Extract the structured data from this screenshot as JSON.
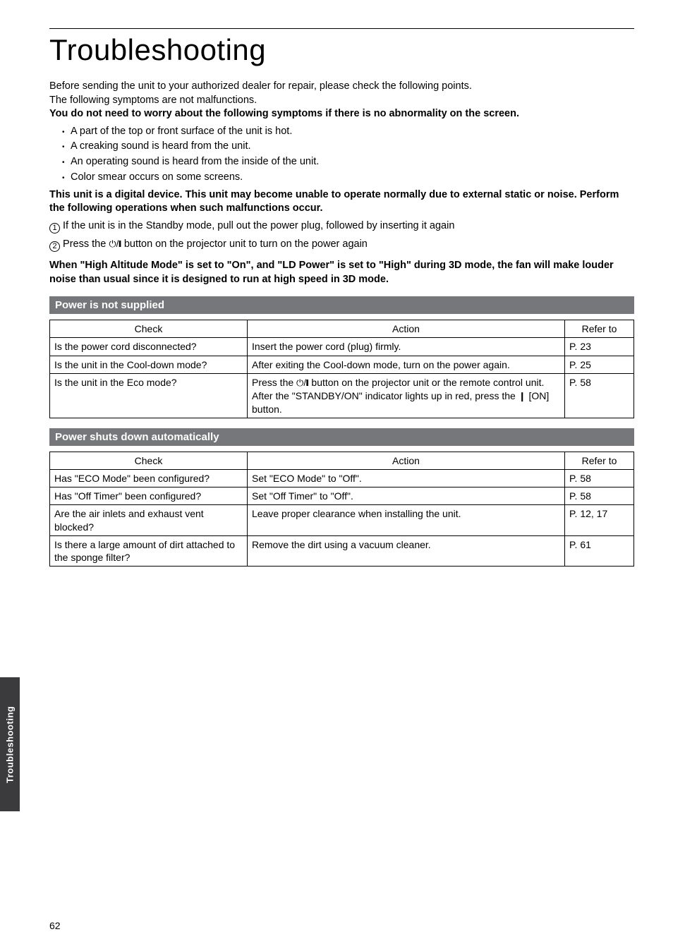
{
  "title": "Troubleshooting",
  "intro": {
    "line1": "Before sending the unit to your authorized dealer for repair, please check the following points.",
    "line2": "The following symptoms are not malfunctions.",
    "bold1": "You do not need to worry about the following symptoms if there is no abnormality on the screen.",
    "bullets": [
      "A part of the top or front surface of the unit is hot.",
      "A creaking sound is heard from the unit.",
      "An operating sound is heard from the inside of the unit.",
      "Color smear occurs on some screens."
    ],
    "bold2": "This unit is a digital device. This unit may become unable to operate normally due to external static or noise. Perform the following operations when such malfunctions occur.",
    "step1": "If the unit is in the Standby mode, pull out the power plug, followed by inserting it again",
    "step2_a": "Press the ",
    "step2_b": " button on the projector unit to turn on the power again",
    "bold3": "When \"High Altitude Mode\" is set to \"On\", and \"LD Power\" is set to \"High\" during 3D mode, the fan will make louder noise than usual since it is designed to run at high speed in 3D mode."
  },
  "section1": {
    "heading": "Power is not supplied",
    "headers": {
      "check": "Check",
      "action": "Action",
      "refer": "Refer to"
    },
    "rows": [
      {
        "check": "Is the power cord disconnected?",
        "action_plain": "Insert the power cord (plug) firmly.",
        "refer": "P. 23"
      },
      {
        "check": "Is the unit in the Cool-down mode?",
        "action_plain": "After exiting the Cool-down mode, turn on the power again.",
        "refer": "P. 25"
      },
      {
        "check": "Is the unit in the Eco mode?",
        "action_pre": "Press the ",
        "action_mid": " button on the projector unit or the remote control unit. After the \"STANDBY/ON\" indicator lights up in red, press the ",
        "action_post": " [ON] button.",
        "refer": "P. 58"
      }
    ]
  },
  "section2": {
    "heading": "Power shuts down automatically",
    "headers": {
      "check": "Check",
      "action": "Action",
      "refer": "Refer to"
    },
    "rows": [
      {
        "check": "Has \"ECO Mode\" been configured?",
        "action_plain": "Set \"ECO Mode\" to \"Off\".",
        "refer": "P. 58"
      },
      {
        "check": "Has \"Off Timer\" been configured?",
        "action_plain": "Set \"Off Timer\" to \"Off\".",
        "refer": "P. 58"
      },
      {
        "check": "Are the air inlets and exhaust vent blocked?",
        "action_plain": "Leave proper clearance when installing the unit.",
        "refer": "P. 12, 17"
      },
      {
        "check": "Is there a large amount of dirt attached to the sponge filter?",
        "action_plain": "Remove the dirt using a vacuum cleaner.",
        "refer": "P. 61"
      }
    ]
  },
  "sidetab": "Troubleshooting",
  "pagenum": "62",
  "colors": {
    "bar_bg": "#76777a",
    "tab_bg": "#3b3b3d"
  }
}
